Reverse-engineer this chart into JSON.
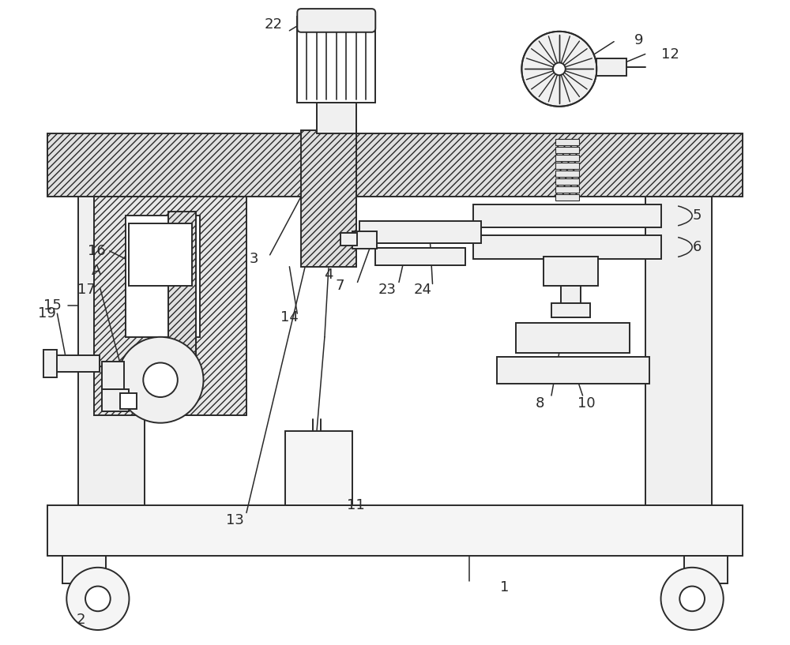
{
  "bg_color": "#ffffff",
  "lc": "#2a2a2a",
  "lw": 1.4,
  "figsize": [
    10.0,
    8.17
  ],
  "dpi": 100
}
